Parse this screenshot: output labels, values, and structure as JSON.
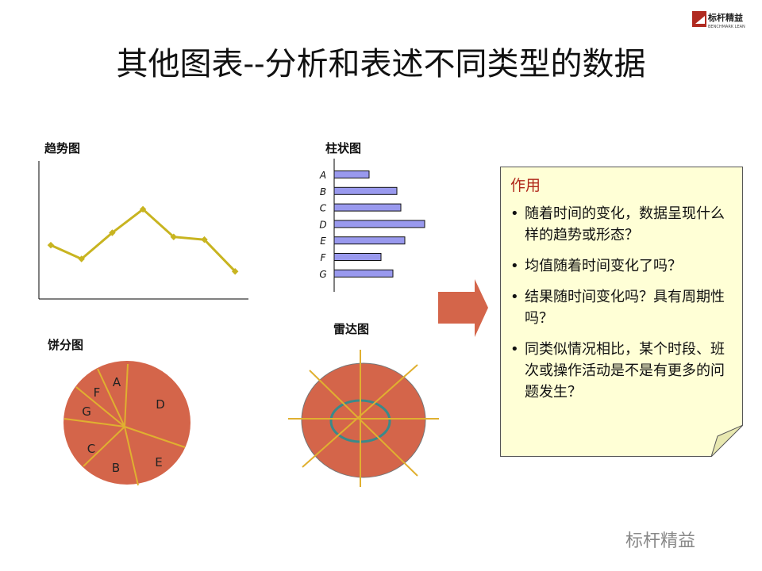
{
  "title": "其他图表--分析和表述不同类型的数据",
  "logo": {
    "text": "标杆精益",
    "subtext": "BENCHMARK LEAN"
  },
  "watermark": "标杆精益",
  "colors": {
    "chart_fill": "#d4654a",
    "chart_lines": "#e0b030",
    "bar_fill": "#9999ee",
    "box_bg": "#ffffd6",
    "arrow": "#d4654a",
    "ring": "#3a8a8a"
  },
  "chart_data": [
    {
      "type": "line",
      "title": "趋势图",
      "values": [
        39,
        29,
        48,
        65,
        45,
        43,
        20
      ],
      "ylim": [
        0,
        100
      ],
      "grid": false
    },
    {
      "type": "bar",
      "orientation": "horizontal",
      "title": "柱状图",
      "categories": [
        "A",
        "B",
        "C",
        "D",
        "E",
        "F",
        "G"
      ],
      "values": [
        44,
        79,
        84,
        114,
        89,
        59,
        74
      ],
      "xlim": [
        0,
        130
      ]
    },
    {
      "type": "pie",
      "title": "饼分图",
      "labels": [
        "A",
        "B",
        "C",
        "D",
        "E",
        "F",
        "G"
      ]
    },
    {
      "type": "radar",
      "title": "雷达图"
    }
  ],
  "box": {
    "heading": "作用",
    "items": [
      "随着时间的变化，数据呈现什么样的趋势或形态？",
      "均值随着时间变化了吗？",
      "结果随时间变化吗？具有周期性吗？",
      "同类似情况相比，某个时段、班次或操作活动是不是有更多的问题发生？"
    ]
  }
}
